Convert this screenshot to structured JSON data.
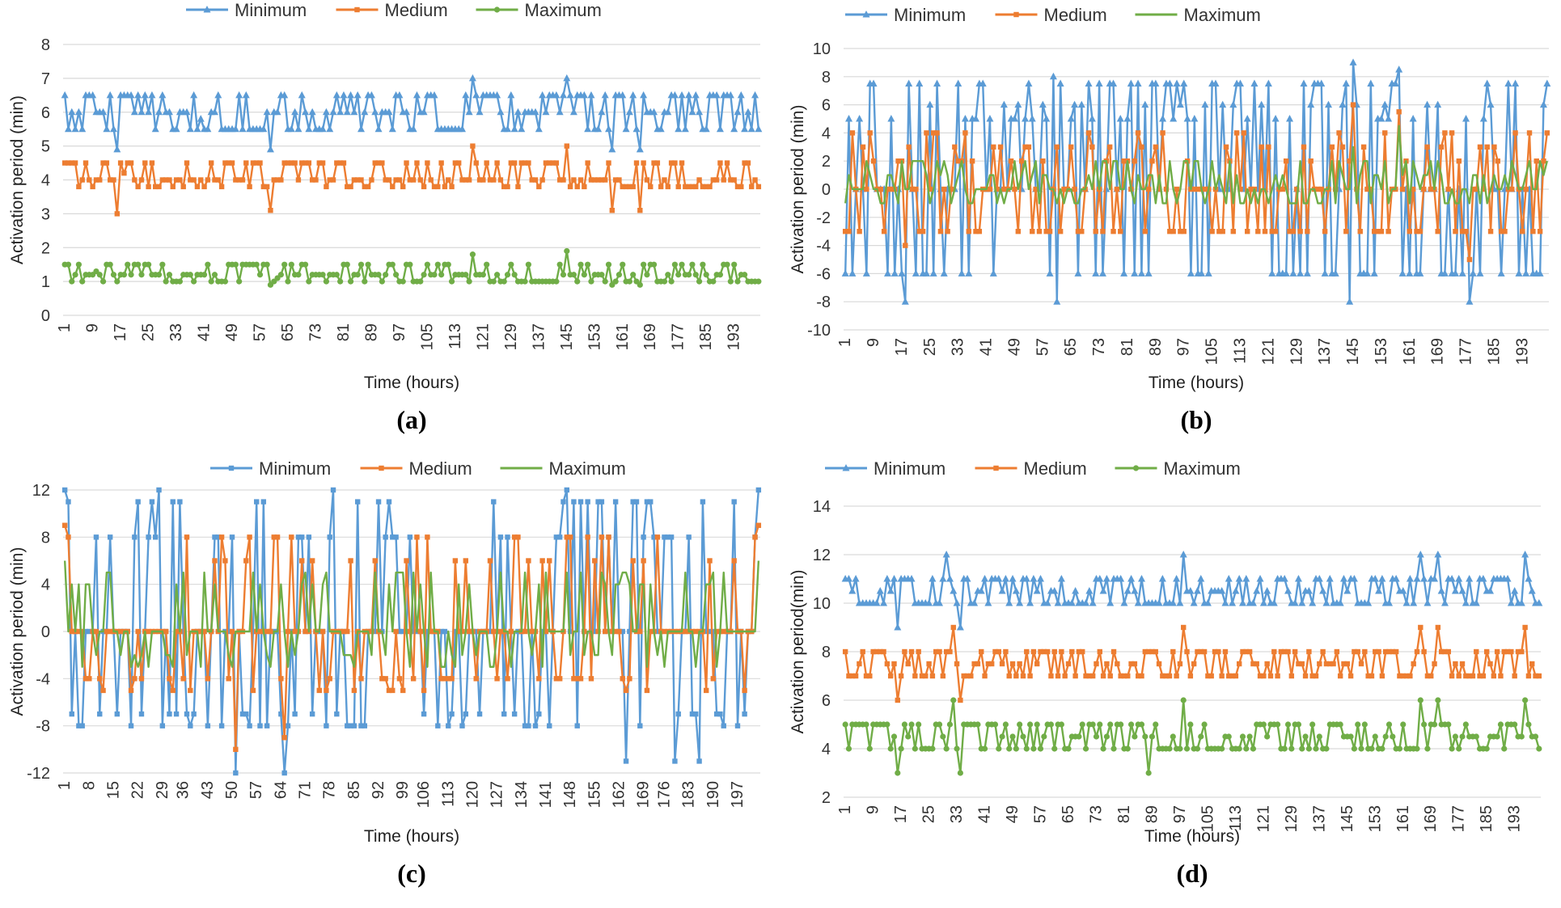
{
  "chart_data": [
    {
      "type": "line",
      "caption": "(a)",
      "xlabel": "Time (hours)",
      "ylabel": "Activation period (min)",
      "ylim": [
        0,
        8
      ],
      "yticks": [
        0,
        1,
        2,
        3,
        4,
        5,
        6,
        7,
        8
      ],
      "xtick_labels": [
        "1",
        "9",
        "17",
        "25",
        "33",
        "41",
        "49",
        "57",
        "65",
        "73",
        "81",
        "89",
        "97",
        "105",
        "113",
        "121",
        "129",
        "137",
        "145",
        "153",
        "161",
        "169",
        "177",
        "185",
        "193"
      ],
      "x_count": 200,
      "series": [
        {
          "name": "Minimum",
          "color": "#5b9bd5",
          "marker": "triangle",
          "keypoints": [
            [
              1,
              6.5
            ],
            [
              10,
              6
            ],
            [
              14,
              6.5
            ],
            [
              16,
              4.9
            ],
            [
              18,
              6.5
            ],
            [
              25,
              6
            ],
            [
              40,
              5.8
            ],
            [
              58,
              5.5
            ],
            [
              60,
              4.9
            ],
            [
              62,
              6
            ],
            [
              90,
              6
            ],
            [
              118,
              7
            ],
            [
              120,
              6
            ],
            [
              145,
              7
            ],
            [
              147,
              6
            ],
            [
              158,
              4.9
            ],
            [
              160,
              6.5
            ],
            [
              166,
              4.9
            ],
            [
              168,
              6
            ],
            [
              200,
              5.5
            ]
          ],
          "noise": [
            5.5,
            6.0,
            6.5
          ]
        },
        {
          "name": "Medium",
          "color": "#ed7d31",
          "marker": "square",
          "keypoints": [
            [
              1,
              4.5
            ],
            [
              10,
              4
            ],
            [
              16,
              3
            ],
            [
              18,
              4.2
            ],
            [
              40,
              4
            ],
            [
              60,
              3.1
            ],
            [
              62,
              4
            ],
            [
              118,
              5
            ],
            [
              120,
              4
            ],
            [
              145,
              5
            ],
            [
              147,
              4
            ],
            [
              158,
              3.1
            ],
            [
              160,
              4
            ],
            [
              166,
              3.1
            ],
            [
              168,
              4
            ],
            [
              200,
              3.8
            ]
          ],
          "noise": [
            3.8,
            4.0,
            4.5
          ]
        },
        {
          "name": "Maximum",
          "color": "#70ad47",
          "marker": "circle",
          "keypoints": [
            [
              1,
              1.5
            ],
            [
              10,
              1.3
            ],
            [
              20,
              1.2
            ],
            [
              60,
              0.9
            ],
            [
              62,
              1.1
            ],
            [
              118,
              1.8
            ],
            [
              120,
              1.2
            ],
            [
              145,
              1.9
            ],
            [
              147,
              1.2
            ],
            [
              158,
              0.9
            ],
            [
              166,
              0.9
            ],
            [
              168,
              1.2
            ],
            [
              200,
              1
            ]
          ],
          "noise": [
            1.0,
            1.2,
            1.5
          ]
        }
      ]
    },
    {
      "type": "line",
      "caption": "(b)",
      "xlabel": "Time (hours)",
      "ylabel": "Activation period (min)",
      "ylim": [
        -10,
        10
      ],
      "yticks": [
        -10,
        -8,
        -6,
        -4,
        -2,
        0,
        2,
        4,
        6,
        8,
        10
      ],
      "xtick_labels": [
        "1",
        "9",
        "17",
        "25",
        "33",
        "41",
        "49",
        "57",
        "65",
        "73",
        "81",
        "89",
        "97",
        "105",
        "113",
        "121",
        "129",
        "137",
        "145",
        "153",
        "161",
        "169",
        "177",
        "185",
        "193"
      ],
      "x_count": 200,
      "series": [
        {
          "name": "Minimum",
          "color": "#5b9bd5",
          "marker": "triangle",
          "keypoints": [
            [
              1,
              -6
            ],
            [
              8,
              7.5
            ],
            [
              18,
              -8
            ],
            [
              22,
              7.5
            ],
            [
              60,
              8
            ],
            [
              61,
              -8
            ],
            [
              145,
              9
            ],
            [
              144,
              -8
            ],
            [
              158,
              8.5
            ],
            [
              178,
              -8
            ],
            [
              200,
              7.5
            ]
          ],
          "noise": [
            -6,
            0,
            6,
            7.5,
            -6,
            0,
            5
          ]
        },
        {
          "name": "Medium",
          "color": "#ed7d31",
          "marker": "square",
          "keypoints": [
            [
              1,
              -3
            ],
            [
              8,
              4
            ],
            [
              18,
              -4
            ],
            [
              145,
              6
            ],
            [
              158,
              5.5
            ],
            [
              178,
              -5
            ],
            [
              200,
              4
            ]
          ],
          "noise": [
            -3,
            0,
            3,
            4,
            -3,
            0,
            2
          ]
        },
        {
          "name": "Maximum",
          "color": "#70ad47",
          "marker": "none",
          "keypoints": [
            [
              1,
              -1
            ],
            [
              145,
              3
            ],
            [
              158,
              4.5
            ],
            [
              200,
              2
            ]
          ],
          "noise": [
            -1,
            0,
            1,
            2,
            0
          ]
        }
      ]
    },
    {
      "type": "line",
      "caption": "(c)",
      "xlabel": "Time (hours)",
      "ylabel": "Activation period (min)",
      "ylim": [
        -12,
        12
      ],
      "yticks": [
        -12,
        -8,
        -4,
        0,
        4,
        8,
        12
      ],
      "xtick_labels": [
        "1",
        "8",
        "15",
        "22",
        "29",
        "36",
        "43",
        "50",
        "57",
        "64",
        "71",
        "78",
        "85",
        "92",
        "99",
        "106",
        "113",
        "120",
        "127",
        "134",
        "141",
        "148",
        "155",
        "162",
        "169",
        "176",
        "183",
        "190",
        "197"
      ],
      "x_count": 200,
      "series": [
        {
          "name": "Minimum",
          "color": "#5b9bd5",
          "marker": "square",
          "keypoints": [
            [
              1,
              12
            ],
            [
              2,
              11
            ],
            [
              4,
              0
            ],
            [
              28,
              12
            ],
            [
              50,
              -12
            ],
            [
              64,
              -12
            ],
            [
              78,
              12
            ],
            [
              145,
              12
            ],
            [
              162,
              -11
            ],
            [
              176,
              -11
            ],
            [
              183,
              -11
            ],
            [
              200,
              12
            ]
          ],
          "noise": [
            0,
            0,
            0,
            11,
            -8,
            0,
            8,
            -7,
            0
          ]
        },
        {
          "name": "Medium",
          "color": "#ed7d31",
          "marker": "square",
          "keypoints": [
            [
              1,
              9
            ],
            [
              4,
              0
            ],
            [
              50,
              -10
            ],
            [
              64,
              -9
            ],
            [
              200,
              9
            ]
          ],
          "noise": [
            0,
            0,
            0,
            8,
            -5,
            0,
            6,
            -4,
            0
          ]
        },
        {
          "name": "Maximum",
          "color": "#70ad47",
          "marker": "none",
          "keypoints": [
            [
              1,
              6
            ],
            [
              4,
              0
            ],
            [
              200,
              6
            ]
          ],
          "noise": [
            0,
            0,
            0,
            5,
            -3,
            0,
            4,
            -2,
            0
          ]
        }
      ]
    },
    {
      "type": "line",
      "caption": "(d)",
      "xlabel": "Time (hours)",
      "ylabel": "Activation period(min)",
      "ylim": [
        2,
        14
      ],
      "yticks": [
        2,
        4,
        6,
        8,
        10,
        12,
        14
      ],
      "xtick_labels": [
        "1",
        "9",
        "17",
        "25",
        "33",
        "41",
        "49",
        "57",
        "65",
        "73",
        "81",
        "89",
        "97",
        "105",
        "113",
        "121",
        "129",
        "137",
        "145",
        "153",
        "161",
        "169",
        "177",
        "185",
        "193"
      ],
      "x_count": 200,
      "series": [
        {
          "name": "Minimum",
          "color": "#5b9bd5",
          "marker": "triangle",
          "keypoints": [
            [
              1,
              11
            ],
            [
              16,
              9
            ],
            [
              30,
              12
            ],
            [
              34,
              9
            ],
            [
              98,
              12
            ],
            [
              166,
              12
            ],
            [
              171,
              12
            ],
            [
              196,
              12
            ],
            [
              200,
              10
            ]
          ],
          "noise": [
            10,
            11,
            10.5,
            11,
            10
          ]
        },
        {
          "name": "Medium",
          "color": "#ed7d31",
          "marker": "square",
          "keypoints": [
            [
              1,
              8
            ],
            [
              16,
              6
            ],
            [
              32,
              9
            ],
            [
              34,
              6
            ],
            [
              98,
              9
            ],
            [
              166,
              9
            ],
            [
              171,
              9
            ],
            [
              196,
              9
            ],
            [
              200,
              7
            ]
          ],
          "noise": [
            7,
            8,
            7.5,
            8,
            7
          ]
        },
        {
          "name": "Maximum",
          "color": "#70ad47",
          "marker": "circle",
          "keypoints": [
            [
              1,
              5
            ],
            [
              16,
              3
            ],
            [
              32,
              6
            ],
            [
              34,
              3
            ],
            [
              88,
              3
            ],
            [
              98,
              6
            ],
            [
              166,
              6
            ],
            [
              171,
              6
            ],
            [
              196,
              6
            ],
            [
              200,
              4
            ]
          ],
          "noise": [
            4,
            5,
            4.5,
            5,
            4
          ]
        }
      ]
    }
  ]
}
